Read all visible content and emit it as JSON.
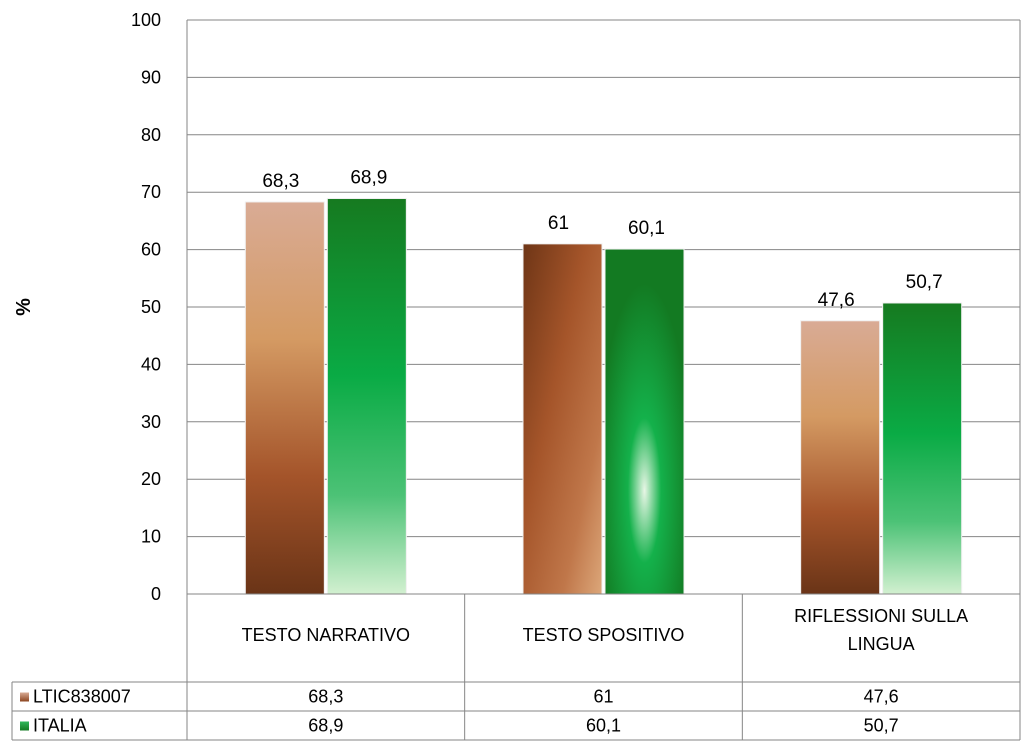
{
  "chart_data": {
    "type": "bar",
    "title": "",
    "xlabel": "",
    "ylabel": "%",
    "ylim": [
      0,
      100
    ],
    "yticks": [
      0,
      10,
      20,
      30,
      40,
      50,
      60,
      70,
      80,
      90,
      100
    ],
    "grid": true,
    "legend": "data-table",
    "categories": [
      "TESTO NARRATIVO",
      "TESTO SPOSITIVO",
      "RIFLESSIONI SULLA LINGUA"
    ],
    "series": [
      {
        "name": "LTIC838007",
        "values": [
          68.3,
          61,
          47.6
        ],
        "labels": [
          "68,3",
          "61",
          "47,6"
        ],
        "color": "#a0522d"
      },
      {
        "name": "ITALIA",
        "values": [
          68.9,
          60.1,
          50.7
        ],
        "labels": [
          "68,9",
          "60,1",
          "50,7"
        ],
        "color": "#1a8a2a"
      }
    ]
  }
}
